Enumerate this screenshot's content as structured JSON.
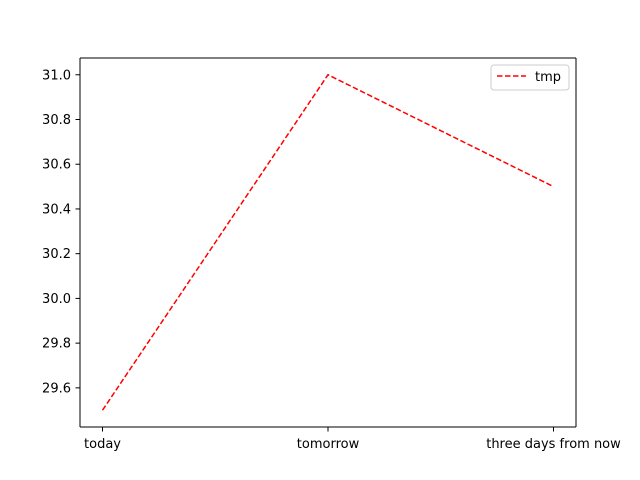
{
  "chart_data": {
    "type": "line",
    "title": "",
    "xlabel": "",
    "ylabel": "",
    "categories": [
      "today",
      "tomorrow",
      "three days from now"
    ],
    "series": [
      {
        "name": "tmp",
        "values": [
          29.5,
          31.0,
          30.5
        ],
        "color": "#ff0000",
        "line_style": "dashed"
      }
    ],
    "ylim": [
      29.425,
      31.075
    ],
    "yticks": [
      "29.6",
      "29.8",
      "30.0",
      "30.2",
      "30.4",
      "30.6",
      "30.8",
      "31.0"
    ],
    "grid": false,
    "legend_position": "upper right"
  }
}
